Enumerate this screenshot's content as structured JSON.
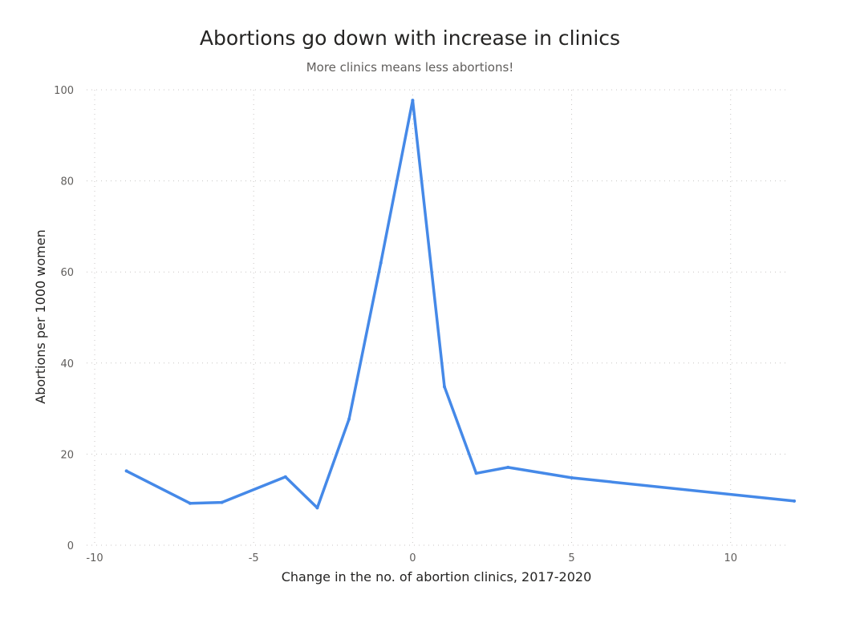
{
  "chart_data": {
    "type": "line",
    "title": "Abortions go down with increase in clinics",
    "subtitle": "More clinics means less abortions!",
    "xlabel": "Change in the no. of abortion clinics, 2017-2020",
    "ylabel": "Abortions per 1000 women",
    "xlim": [
      -10,
      12
    ],
    "ylim": [
      0,
      100
    ],
    "xticks": [
      -10,
      -5,
      0,
      5,
      10
    ],
    "yticks": [
      0,
      20,
      40,
      60,
      80,
      100
    ],
    "grid": true,
    "series": [
      {
        "color": "#4589e8",
        "x": [
          -9,
          -7,
          -6,
          -4,
          -3,
          -2,
          -1,
          0,
          1,
          2,
          3,
          5,
          12
        ],
        "y": [
          16.3,
          9.2,
          9.4,
          15.0,
          8.2,
          27.7,
          62.0,
          97.7,
          34.8,
          15.8,
          17.1,
          14.8,
          9.7
        ]
      }
    ]
  }
}
